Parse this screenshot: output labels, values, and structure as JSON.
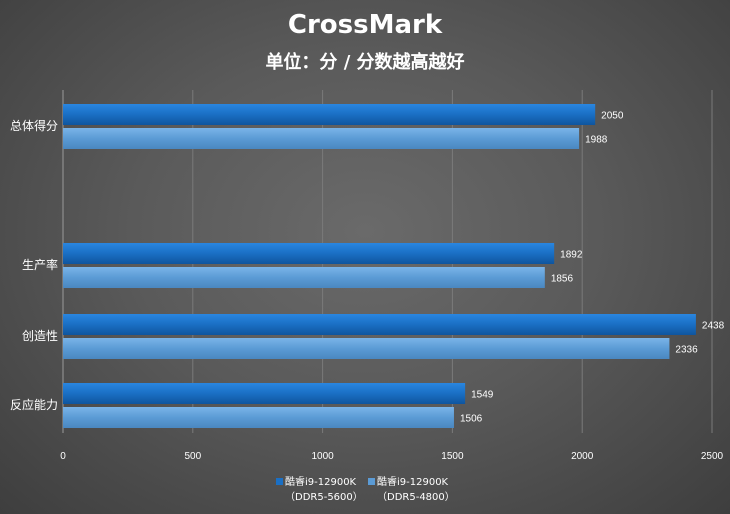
{
  "chart_data": {
    "type": "bar",
    "orientation": "horizontal",
    "title": "CrossMark",
    "subtitle": "单位：分 / 分数越高越好",
    "categories": [
      "总体得分",
      "生产率",
      "创造性",
      "反应能力"
    ],
    "series": [
      {
        "name": "酷睿i9-12900K（DDR5-5600）",
        "name_line1": "酷睿i9-12900K",
        "name_line2": "（DDR5-5600）",
        "color": "#1a6fc4",
        "values": [
          2050,
          1892,
          2438,
          1549
        ]
      },
      {
        "name": "酷睿i9-12900K（DDR5-4800）",
        "name_line1": "酷睿i9-12900K",
        "name_line2": "（DDR5-4800）",
        "color": "#5b9bd5",
        "values": [
          1988,
          1856,
          2336,
          1506
        ]
      }
    ],
    "xlim": [
      0,
      2500
    ],
    "xticks": [
      "0",
      "500",
      "1000",
      "1500",
      "2000",
      "2500"
    ],
    "grid": "vertical",
    "legend": "bottom"
  }
}
